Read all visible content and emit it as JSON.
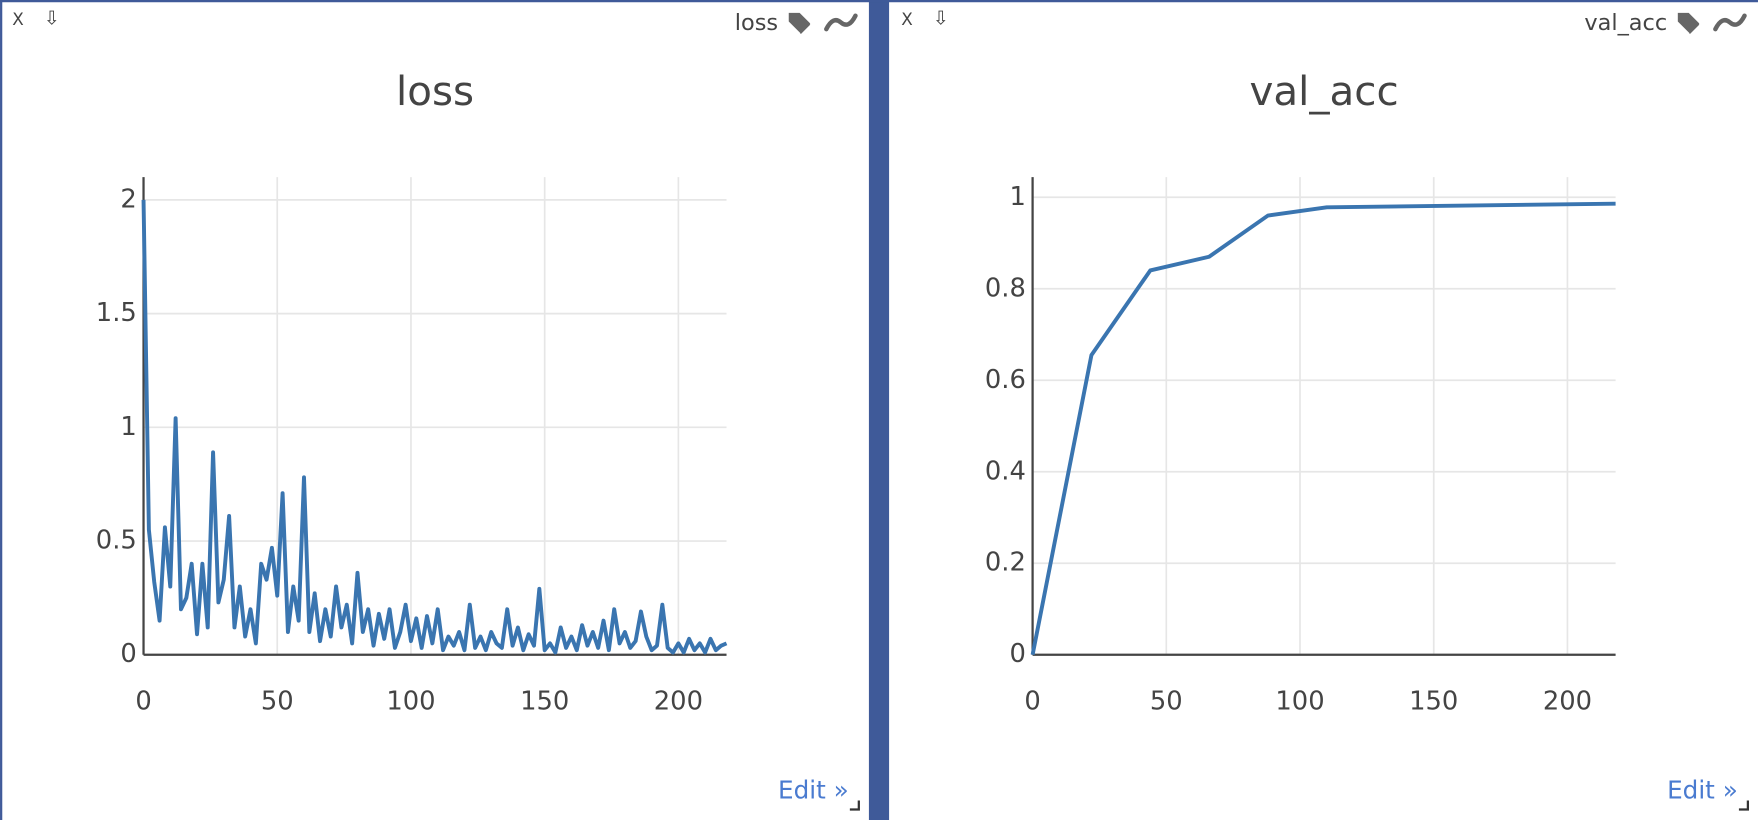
{
  "panes": [
    {
      "close": "X",
      "download": "⇩",
      "tag": "loss",
      "edit": "Edit »"
    },
    {
      "close": "X",
      "download": "⇩",
      "tag": "val_acc",
      "edit": "Edit »"
    }
  ],
  "chart_data": [
    {
      "type": "line",
      "title": "loss",
      "color": "#3a75b0",
      "grid": true,
      "x": [
        0,
        2,
        4,
        6,
        8,
        10,
        12,
        14,
        16,
        18,
        20,
        22,
        24,
        26,
        28,
        30,
        32,
        34,
        36,
        38,
        40,
        42,
        44,
        46,
        48,
        50,
        52,
        54,
        56,
        58,
        60,
        62,
        64,
        66,
        68,
        70,
        72,
        74,
        76,
        78,
        80,
        82,
        84,
        86,
        88,
        90,
        92,
        94,
        96,
        98,
        100,
        102,
        104,
        106,
        108,
        110,
        112,
        114,
        116,
        118,
        120,
        122,
        124,
        126,
        128,
        130,
        132,
        134,
        136,
        138,
        140,
        142,
        144,
        146,
        148,
        150,
        152,
        154,
        156,
        158,
        160,
        162,
        164,
        166,
        168,
        170,
        172,
        174,
        176,
        178,
        180,
        182,
        184,
        186,
        188,
        190,
        192,
        194,
        196,
        198,
        200,
        202,
        204,
        206,
        208,
        210,
        212,
        214,
        216,
        218
      ],
      "values": [
        2.0,
        0.55,
        0.32,
        0.15,
        0.56,
        0.3,
        1.04,
        0.2,
        0.25,
        0.4,
        0.09,
        0.4,
        0.12,
        0.89,
        0.23,
        0.33,
        0.61,
        0.12,
        0.3,
        0.08,
        0.2,
        0.05,
        0.4,
        0.33,
        0.47,
        0.26,
        0.71,
        0.1,
        0.3,
        0.15,
        0.78,
        0.1,
        0.27,
        0.06,
        0.2,
        0.08,
        0.3,
        0.12,
        0.22,
        0.05,
        0.36,
        0.1,
        0.2,
        0.04,
        0.18,
        0.07,
        0.2,
        0.03,
        0.1,
        0.22,
        0.06,
        0.16,
        0.03,
        0.17,
        0.05,
        0.2,
        0.02,
        0.08,
        0.04,
        0.1,
        0.02,
        0.22,
        0.03,
        0.08,
        0.02,
        0.1,
        0.05,
        0.03,
        0.2,
        0.04,
        0.12,
        0.02,
        0.09,
        0.04,
        0.29,
        0.02,
        0.05,
        0.01,
        0.12,
        0.03,
        0.08,
        0.02,
        0.13,
        0.04,
        0.1,
        0.03,
        0.15,
        0.02,
        0.2,
        0.05,
        0.1,
        0.03,
        0.06,
        0.19,
        0.08,
        0.02,
        0.04,
        0.22,
        0.03,
        0.01,
        0.05,
        0.01,
        0.07,
        0.02,
        0.05,
        0.01,
        0.07,
        0.02,
        0.04,
        0.05
      ],
      "xlim": [
        0,
        218
      ],
      "ylim": [
        0,
        2.1
      ],
      "xticks": [
        0,
        50,
        100,
        150,
        200
      ],
      "yticks": [
        0,
        0.5,
        1,
        1.5,
        2
      ]
    },
    {
      "type": "line",
      "title": "val_acc",
      "color": "#3a75b0",
      "grid": true,
      "x": [
        0,
        22,
        44,
        66,
        88,
        110,
        218
      ],
      "values": [
        0,
        0.655,
        0.84,
        0.87,
        0.96,
        0.978,
        0.986
      ],
      "xlim": [
        0,
        218
      ],
      "ylim": [
        0,
        1.044
      ],
      "xticks": [
        0,
        50,
        100,
        150,
        200
      ],
      "yticks": [
        0,
        0.2,
        0.4,
        0.6,
        0.8,
        1
      ]
    }
  ]
}
